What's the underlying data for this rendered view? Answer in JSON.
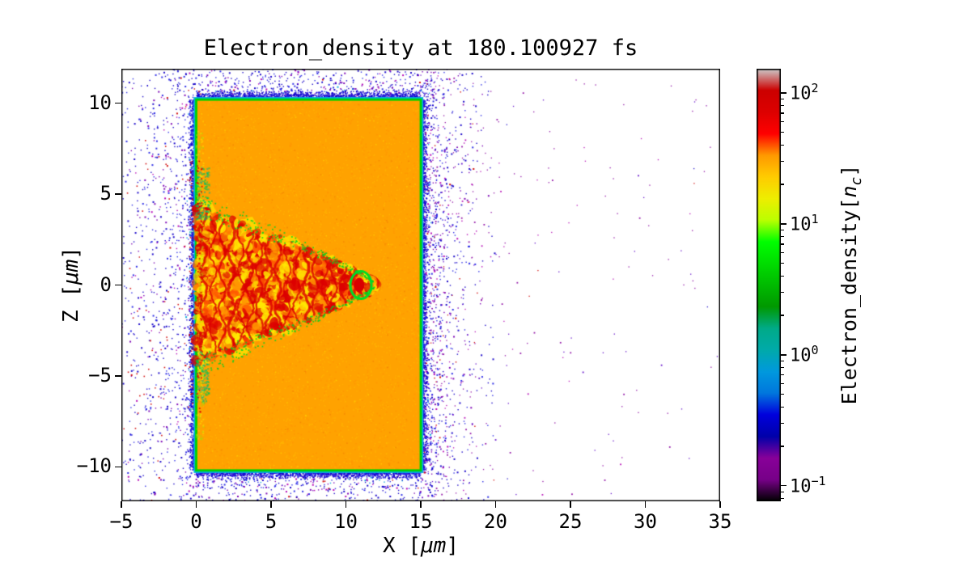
{
  "chart_data": {
    "type": "heatmap",
    "title": "Electron_density at 180.100927 fs",
    "xlabel": {
      "prefix": "X [",
      "math": "μm",
      "suffix": "]"
    },
    "ylabel": {
      "prefix": "Z [",
      "math": "μm",
      "suffix": "]"
    },
    "x_range": [
      -5,
      35
    ],
    "z_range": [
      -11.9,
      11.9
    ],
    "x_ticks": [
      -5,
      0,
      5,
      10,
      15,
      20,
      25,
      30,
      35
    ],
    "z_ticks": [
      -10,
      -5,
      0,
      5,
      10
    ],
    "scale": "log",
    "clim": [
      0.076,
      153
    ],
    "colormap": {
      "name": "nipy_spectral",
      "stops": [
        [
          0,
          "#000000"
        ],
        [
          0.05,
          "#770088"
        ],
        [
          0.1,
          "#880099"
        ],
        [
          0.15,
          "#0000aa"
        ],
        [
          0.2,
          "#0000dd"
        ],
        [
          0.25,
          "#0077dd"
        ],
        [
          0.3,
          "#0099dd"
        ],
        [
          0.35,
          "#00aaaa"
        ],
        [
          0.4,
          "#00aa88"
        ],
        [
          0.45,
          "#009900"
        ],
        [
          0.5,
          "#00bb00"
        ],
        [
          0.55,
          "#00dd00"
        ],
        [
          0.6,
          "#00ff00"
        ],
        [
          0.65,
          "#bbff00"
        ],
        [
          0.7,
          "#eeee00"
        ],
        [
          0.75,
          "#ffcc00"
        ],
        [
          0.8,
          "#ff9900"
        ],
        [
          0.85,
          "#ff0000"
        ],
        [
          0.9,
          "#dd0000"
        ],
        [
          0.95,
          "#cc0000"
        ],
        [
          1,
          "#cccccc"
        ]
      ]
    },
    "colorbar": {
      "label": {
        "prefix": "Electron_density[",
        "math_base": "n",
        "math_sub": "c",
        "suffix": "]"
      },
      "major_tick_exponents": [
        -1,
        0,
        1,
        2
      ]
    },
    "features": {
      "target_slab": {
        "x": [
          0,
          15
        ],
        "z": [
          -10.2,
          10.2
        ],
        "density_nc": 30,
        "fill": "#ffa200",
        "speckle": [
          "#ffb800",
          "#ff8f00",
          "#ffc400"
        ],
        "rim_green": "#00d200",
        "rim_cyan": "#00b4dc"
      },
      "laser_channel": {
        "x_tip": 12.1,
        "entry_half_width": 4.5,
        "peak_density_nc": 120,
        "base_fill": "#ffd400",
        "filament_colors": [
          "#dc0000",
          "#ff5a00",
          "#ff9600",
          "#ffe800"
        ],
        "green": "#00d220",
        "tip": {
          "x": 11.0,
          "z": 0.0,
          "ring": "#00dc28",
          "core": "#d80000"
        }
      },
      "coronal_halo": {
        "density_nc": 0.5,
        "scale_um": 1.1,
        "left_scale_um": 2.2,
        "colors": [
          "#1400c8",
          "#2828e6",
          "#7a00b4",
          "#b400b4",
          "#00a0dc"
        ],
        "red_fleck": "#d00000"
      },
      "sparse_cloud": {
        "x": [
          15,
          35
        ],
        "density_nc": 0.15,
        "colors": [
          "#8a00a0",
          "#5a00c8",
          "#b400b4"
        ]
      }
    }
  }
}
